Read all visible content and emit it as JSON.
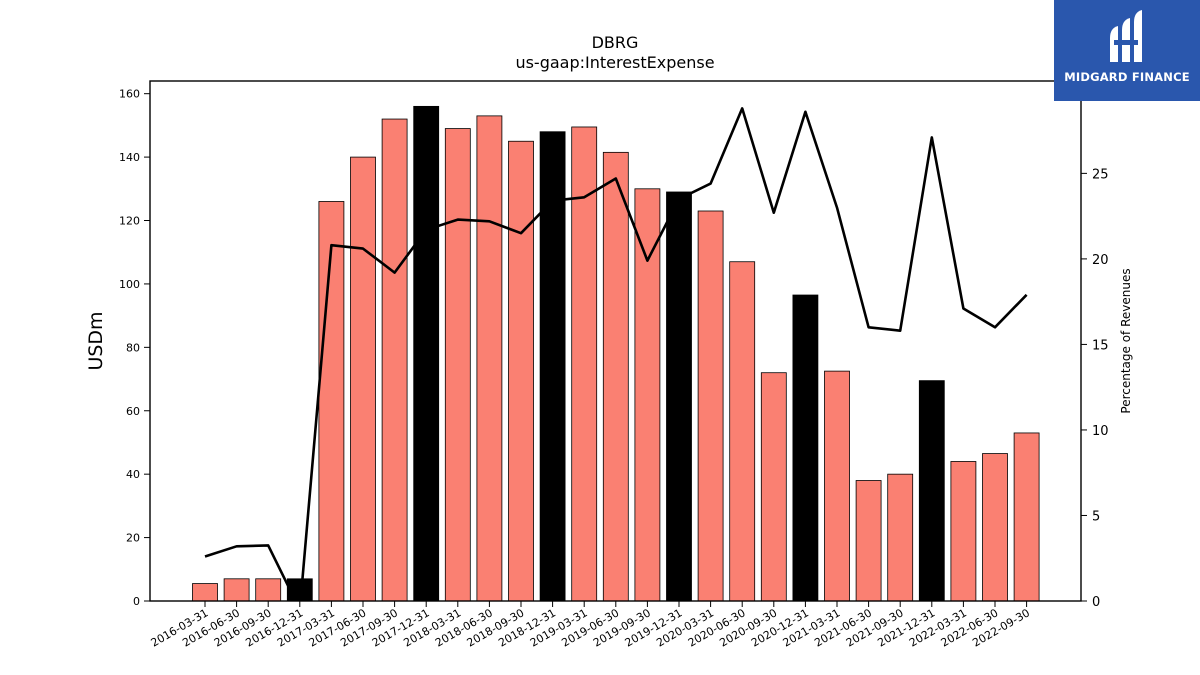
{
  "logo": {
    "text": "MIDGARD FINANCE",
    "bg_color": "#2a57ad"
  },
  "chart_data": {
    "type": "bar",
    "title": "DBRG",
    "subtitle": "us-gaap:InterestExpense",
    "ylabel": "USDm",
    "y2label": "Percentage of Revenues",
    "ylim": [
      0,
      164
    ],
    "y2lim": [
      0,
      30.4
    ],
    "yticks": [
      0,
      20,
      40,
      60,
      80,
      100,
      120,
      140,
      160
    ],
    "y2ticks": [
      0,
      5,
      10,
      15,
      20,
      25
    ],
    "grid": false,
    "bar_color": "#fa8072",
    "highlight_color": "#000000",
    "categories": [
      "2016-03-31",
      "2016-06-30",
      "2016-09-30",
      "2016-12-31",
      "2017-03-31",
      "2017-06-30",
      "2017-09-30",
      "2017-12-31",
      "2018-03-31",
      "2018-06-30",
      "2018-09-30",
      "2018-12-31",
      "2019-03-31",
      "2019-06-30",
      "2019-09-30",
      "2019-12-31",
      "2020-03-31",
      "2020-06-30",
      "2020-09-30",
      "2020-12-31",
      "2021-03-31",
      "2021-06-30",
      "2021-09-30",
      "2021-12-31",
      "2022-03-31",
      "2022-06-30",
      "2022-09-30"
    ],
    "series": [
      {
        "type": "bar",
        "axis": "left",
        "values": [
          5.5,
          7,
          7,
          7,
          126,
          140,
          152,
          156,
          149,
          153,
          145,
          148,
          149.5,
          141.5,
          130,
          129,
          123,
          107,
          72,
          96.5,
          72.5,
          38,
          40,
          69.5,
          44,
          46.5,
          53
        ],
        "highlighted": [
          false,
          false,
          false,
          true,
          false,
          false,
          false,
          true,
          false,
          false,
          false,
          true,
          false,
          false,
          false,
          true,
          false,
          false,
          false,
          true,
          false,
          false,
          false,
          true,
          false,
          false,
          false
        ]
      },
      {
        "type": "line",
        "axis": "right",
        "color": "#000000",
        "values": [
          2.6,
          3.2,
          3.25,
          -0.5,
          20.8,
          20.6,
          19.2,
          21.7,
          22.3,
          22.2,
          21.5,
          23.4,
          23.6,
          24.7,
          19.9,
          23.5,
          24.4,
          28.8,
          22.7,
          28.6,
          23.0,
          16.0,
          15.8,
          27.1,
          17.1,
          16.0,
          17.9
        ]
      }
    ]
  }
}
